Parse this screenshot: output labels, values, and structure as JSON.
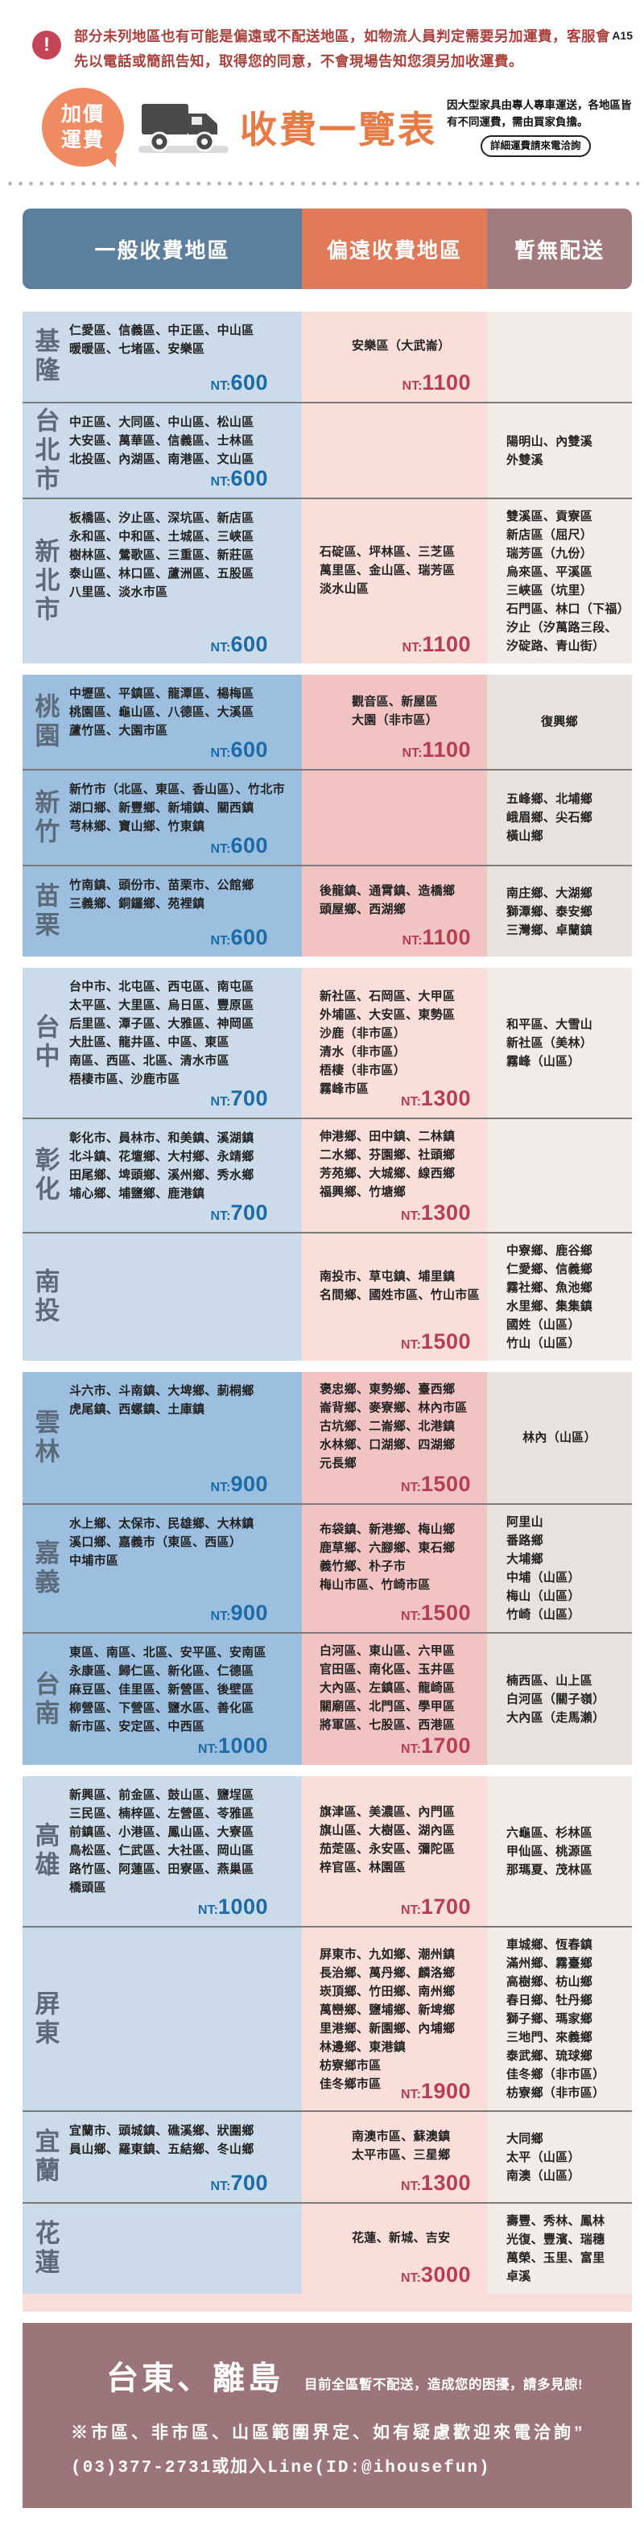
{
  "page_code": "A15",
  "notice": {
    "text": "部分未列地區也有可能是偏遠或不配送地區，如物流人員判定需要另加運費，客服會先以電話或簡訊告知，取得您的同意，不會現場告知您須另加收運費。"
  },
  "header": {
    "badge_line1": "加價",
    "badge_line2": "運費",
    "title": "收費一覽表",
    "subtitle": "因大型家具由專人專車運送，各地區皆有不同運費，需由買家負擔。",
    "pill": "詳細運費請來電洽詢"
  },
  "colors": {
    "header_general": "#5b7f9d",
    "header_remote": "#e07a58",
    "header_nodeliv": "#a17b7d",
    "price_general": "#1a6ba6",
    "price_remote": "#b73d51",
    "title_orange": "#e87a45",
    "notice_red": "#a8403c",
    "banner_mauve": "#9c757a"
  },
  "table": {
    "price_prefix": "NT:",
    "columns": [
      "一般收費地區",
      "偏遠收費地區",
      "暫無配送"
    ],
    "cards": [
      {
        "rows": [
          {
            "region": "基隆",
            "general": {
              "lines": [
                "仁愛區、信義區、中正區、中山區",
                "暖暖區、七堵區、安樂區"
              ],
              "price": "600"
            },
            "remote": {
              "lines": [
                "安樂區（大武崙）"
              ],
              "price": "1100"
            },
            "no_delivery": {
              "lines": []
            }
          },
          {
            "region": "台北市",
            "general": {
              "lines": [
                "中正區、大同區、中山區、松山區",
                "大安區、萬華區、信義區、士林區",
                "北投區、內湖區、南港區、文山區"
              ],
              "price": "600"
            },
            "remote": {
              "lines": [],
              "price": ""
            },
            "no_delivery": {
              "lines": [
                "陽明山、內雙溪",
                "外雙溪"
              ]
            }
          },
          {
            "region": "新北市",
            "general": {
              "lines": [
                "板橋區、汐止區、深坑區、新店區",
                "永和區、中和區、土城區、三峽區",
                "樹林區、鶯歌區、三重區、新莊區",
                "泰山區、林口區、蘆洲區、五股區",
                "八里區、淡水市區"
              ],
              "price": "600"
            },
            "remote": {
              "lines": [
                "石碇區、坪林區、三芝區",
                "萬里區、金山區、瑞芳區",
                "淡水山區"
              ],
              "price": "1100"
            },
            "no_delivery": {
              "lines": [
                "雙溪區、貢寮區",
                "新店區（屈尺）",
                "瑞芳區（九份）",
                "烏來區、平溪區",
                "三峽區（坑里）",
                "石門區、林口（下福）",
                "汐止（汐萬路三段、",
                "汐碇路、青山街）"
              ]
            }
          }
        ]
      },
      {
        "rows": [
          {
            "region": "桃園",
            "general": {
              "lines": [
                "中壢區、平鎮區、龍潭區、楊梅區",
                "桃園區、龜山區、八德區、大溪區",
                "蘆竹區、大園市區"
              ],
              "price": "600"
            },
            "remote": {
              "lines": [
                "觀音區、新屋區",
                "大園（非市區）"
              ],
              "price": "1100"
            },
            "no_delivery": {
              "lines": [
                "復興鄉"
              ]
            }
          },
          {
            "region": "新竹",
            "general": {
              "lines": [
                "新竹市（北區、東區、香山區）、竹北市",
                "湖口鄉、新豐鄉、新埔鎮、關西鎮",
                "芎林鄉、寶山鄉、竹東鎮"
              ],
              "price": "600"
            },
            "remote": {
              "lines": [],
              "price": ""
            },
            "no_delivery": {
              "lines": [
                "五峰鄉、北埔鄉",
                "峨眉鄉、尖石鄉",
                "橫山鄉"
              ]
            }
          },
          {
            "region": "苗栗",
            "general": {
              "lines": [
                "竹南鎮、頭份市、苗栗市、公館鄉",
                "三義鄉、銅鑼鄉、苑裡鎮"
              ],
              "price": "600"
            },
            "remote": {
              "lines": [
                "後龍鎮、通霄鎮、造橋鄉",
                "頭屋鄉、西湖鄉"
              ],
              "price": "1100"
            },
            "no_delivery": {
              "lines": [
                "南庄鄉、大湖鄉",
                "獅潭鄉、泰安鄉",
                "三灣鄉、卓蘭鎮"
              ]
            }
          }
        ]
      },
      {
        "rows": [
          {
            "region": "台中",
            "general": {
              "lines": [
                "台中市、北屯區、西屯區、南屯區",
                "太平區、大里區、烏日區、豐原區",
                "后里區、潭子區、大雅區、神岡區",
                "大肚區、龍井區、中區、東區",
                "南區、西區、北區、清水市區",
                "梧棲市區、沙鹿市區"
              ],
              "price": "700"
            },
            "remote": {
              "lines": [
                "新社區、石岡區、大甲區",
                "外埔區、大安區、東勢區",
                "沙鹿（非市區）",
                "清水（非市區）",
                "梧棲（非市區）",
                "霧峰市區"
              ],
              "price": "1300"
            },
            "no_delivery": {
              "lines": [
                "和平區、大雪山",
                "新社區（美林）",
                "霧峰（山區）"
              ]
            }
          },
          {
            "region": "彰化",
            "general": {
              "lines": [
                "彰化市、員林市、和美鎮、溪湖鎮",
                "北斗鎮、花壇鄉、大村鄉、永靖鄉",
                "田尾鄉、埤頭鄉、溪州鄉、秀水鄉",
                "埔心鄉、埔鹽鄉、鹿港鎮"
              ],
              "price": "700"
            },
            "remote": {
              "lines": [
                "伸港鄉、田中鎮、二林鎮",
                "二水鄉、芬園鄉、社頭鄉",
                "芳苑鄉、大城鄉、線西鄉",
                "福興鄉、竹塘鄉"
              ],
              "price": "1300"
            },
            "no_delivery": {
              "lines": []
            }
          },
          {
            "region": "南投",
            "general": {
              "lines": [],
              "price": ""
            },
            "remote": {
              "lines": [
                "南投市、草屯鎮、埔里鎮",
                "名間鄉、國姓市區、竹山市區"
              ],
              "price": "1500"
            },
            "no_delivery": {
              "lines": [
                "中寮鄉、鹿谷鄉",
                "仁愛鄉、信義鄉",
                "霧社鄉、魚池鄉",
                "水里鄉、集集鎮",
                "國姓（山區）",
                "竹山（山區）"
              ]
            }
          }
        ]
      },
      {
        "rows": [
          {
            "region": "雲林",
            "general": {
              "lines": [
                "斗六市、斗南鎮、大埤鄉、莿桐鄉",
                "虎尾鎮、西螺鎮、土庫鎮"
              ],
              "price": "900"
            },
            "remote": {
              "lines": [
                "褒忠鄉、東勢鄉、臺西鄉",
                "崙背鄉、麥寮鄉、林內市區",
                "古坑鄉、二崙鄉、北港鎮",
                "水林鄉、口湖鄉、四湖鄉",
                "元長鄉"
              ],
              "price": "1500"
            },
            "no_delivery": {
              "lines": [
                "林內（山區）"
              ]
            }
          },
          {
            "region": "嘉義",
            "general": {
              "lines": [
                "水上鄉、太保市、民雄鄉、大林鎮",
                "溪口鄉、嘉義市（東區、西區）",
                "中埔市區"
              ],
              "price": "900"
            },
            "remote": {
              "lines": [
                "布袋鎮、新港鄉、梅山鄉",
                "鹿草鄉、六腳鄉、東石鄉",
                "義竹鄉、朴子市",
                "梅山市區、竹崎市區"
              ],
              "price": "1500"
            },
            "no_delivery": {
              "lines": [
                "阿里山",
                "番路鄉",
                "大埔鄉",
                "中埔（山區）",
                "梅山（山區）",
                "竹崎（山區）"
              ]
            }
          },
          {
            "region": "台南",
            "general": {
              "lines": [
                "東區、南區、北區、安平區、安南區",
                "永康區、歸仁區、新化區、仁德區",
                "麻豆區、佳里區、新營區、後壁區",
                "柳營區、下營區、鹽水區、善化區",
                "新市區、安定區、中西區"
              ],
              "price": "1000"
            },
            "remote": {
              "lines": [
                "白河區、東山區、六甲區",
                "官田區、南化區、玉井區",
                "大內區、左鎮區、龍崎區",
                "關廟區、北門區、學甲區",
                "將軍區、七股區、西港區"
              ],
              "price": "1700"
            },
            "no_delivery": {
              "lines": [
                "楠西區、山上區",
                "白河區（關子嶺）",
                "大內區（走馬瀨）"
              ]
            }
          }
        ]
      },
      {
        "rows": [
          {
            "region": "高雄",
            "general": {
              "lines": [
                "新興區、前金區、鼓山區、鹽埕區",
                "三民區、楠梓區、左營區、苓雅區",
                "前鎮區、小港區、鳳山區、大寮區",
                "鳥松區、仁武區、大社區、岡山區",
                "路竹區、阿蓮區、田寮區、燕巢區",
                "橋頭區"
              ],
              "price": "1000"
            },
            "remote": {
              "lines": [
                "旗津區、美濃區、內門區",
                "旗山區、大樹區、湖內區",
                "茄萣區、永安區、彌陀區",
                "梓官區、林園區"
              ],
              "price": "1700"
            },
            "no_delivery": {
              "lines": [
                "六龜區、杉林區",
                "甲仙區、桃源區",
                "那瑪夏、茂林區"
              ]
            }
          },
          {
            "region": "屏東",
            "general": {
              "lines": [],
              "price": ""
            },
            "remote": {
              "lines": [
                "屏東市、九如鄉、潮州鎮",
                "長治鄉、萬丹鄉、麟洛鄉",
                "崁頂鄉、竹田鄉、南州鄉",
                "萬巒鄉、鹽埔鄉、新埤鄉",
                "里港鄉、新園鄉、內埔鄉",
                "林邊鄉、東港鎮",
                "枋寮鄉市區",
                "佳冬鄉市區"
              ],
              "price": "1900"
            },
            "no_delivery": {
              "lines": [
                "車城鄉、恆春鎮",
                "滿州鄉、霧臺鄉",
                "高樹鄉、枋山鄉",
                "春日鄉、牡丹鄉",
                "獅子鄉、瑪家鄉",
                "三地門、來義鄉",
                "泰武鄉、琉球鄉",
                "佳冬鄉（非市區）",
                "枋寮鄉（非市區）"
              ]
            }
          },
          {
            "region": "宜蘭",
            "general": {
              "lines": [
                "宜蘭市、頭城鎮、礁溪鄉、狀圍鄉",
                "員山鄉、羅東鎮、五結鄉、冬山鄉"
              ],
              "price": "700"
            },
            "remote": {
              "lines": [
                "南澳市區、蘇澳鎮",
                "太平市區、三星鄉"
              ],
              "price": "1300"
            },
            "no_delivery": {
              "lines": [
                "大同鄉",
                "太平（山區）",
                "南澳（山區）"
              ]
            }
          },
          {
            "region": "花蓮",
            "general": {
              "lines": [],
              "price": ""
            },
            "remote": {
              "lines": [
                "花蓮、新城、吉安"
              ],
              "price": "3000"
            },
            "no_delivery": {
              "lines": [
                "壽豐、秀林、鳳林",
                "光復、豐濱、瑞穗",
                "萬榮、玉里、富里",
                "卓溪"
              ]
            }
          }
        ]
      }
    ]
  },
  "footer": {
    "title": "台東、離島",
    "note": "目前全區暫不配送，造成您的困擾，請多見諒!",
    "line1": "※市區、非市區、山區範圍界定、如有疑慮歡迎來電洽詢”",
    "line2": "(03)377-2731或加入Line(ID:@ihousefun)"
  }
}
